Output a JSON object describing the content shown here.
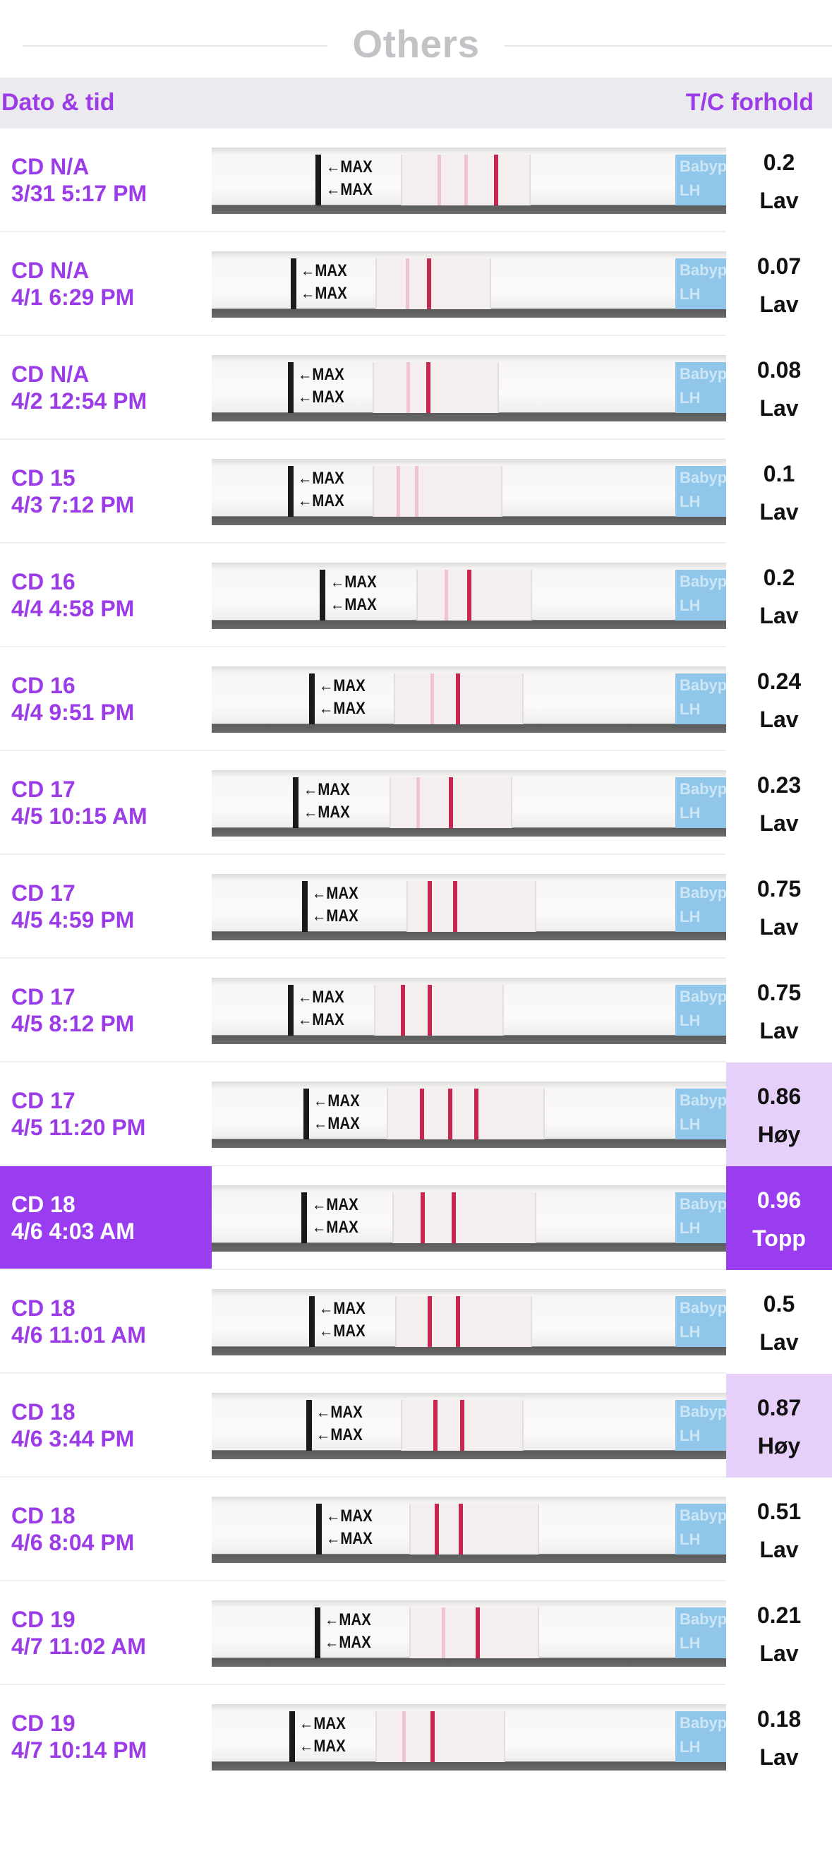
{
  "section_title": "Others",
  "header": {
    "left": "Dato & tid",
    "right": "T/C forhold"
  },
  "colors": {
    "accent": "#9a3df0",
    "high_bg": "#e6cff8",
    "test_line": "#c7264e"
  },
  "strip_marker": "←MAX",
  "strip_brand": "Babyplan LH",
  "rows": [
    {
      "cd": "CD N/A",
      "datetime": "3/31 5:17 PM",
      "value": "0.2",
      "level": "Lav"
    },
    {
      "cd": "CD N/A",
      "datetime": "4/1 6:29 PM",
      "value": "0.07",
      "level": "Lav"
    },
    {
      "cd": "CD N/A",
      "datetime": "4/2 12:54 PM",
      "value": "0.08",
      "level": "Lav"
    },
    {
      "cd": "CD 15",
      "datetime": "4/3 7:12 PM",
      "value": "0.1",
      "level": "Lav"
    },
    {
      "cd": "CD 16",
      "datetime": "4/4 4:58 PM",
      "value": "0.2",
      "level": "Lav"
    },
    {
      "cd": "CD 16",
      "datetime": "4/4 9:51 PM",
      "value": "0.24",
      "level": "Lav"
    },
    {
      "cd": "CD 17",
      "datetime": "4/5 10:15 AM",
      "value": "0.23",
      "level": "Lav"
    },
    {
      "cd": "CD 17",
      "datetime": "4/5 4:59 PM",
      "value": "0.75",
      "level": "Lav"
    },
    {
      "cd": "CD 17",
      "datetime": "4/5 8:12 PM",
      "value": "0.75",
      "level": "Lav"
    },
    {
      "cd": "CD 17",
      "datetime": "4/5 11:20 PM",
      "value": "0.86",
      "level": "Høy"
    },
    {
      "cd": "CD 18",
      "datetime": "4/6 4:03 AM",
      "value": "0.96",
      "level": "Topp"
    },
    {
      "cd": "CD 18",
      "datetime": "4/6 11:01 AM",
      "value": "0.5",
      "level": "Lav"
    },
    {
      "cd": "CD 18",
      "datetime": "4/6 3:44 PM",
      "value": "0.87",
      "level": "Høy"
    },
    {
      "cd": "CD 18",
      "datetime": "4/6 8:04 PM",
      "value": "0.51",
      "level": "Lav"
    },
    {
      "cd": "CD 19",
      "datetime": "4/7 11:02 AM",
      "value": "0.21",
      "level": "Lav"
    },
    {
      "cd": "CD 19",
      "datetime": "4/7 10:14 PM",
      "value": "0.18",
      "level": "Lav"
    }
  ]
}
